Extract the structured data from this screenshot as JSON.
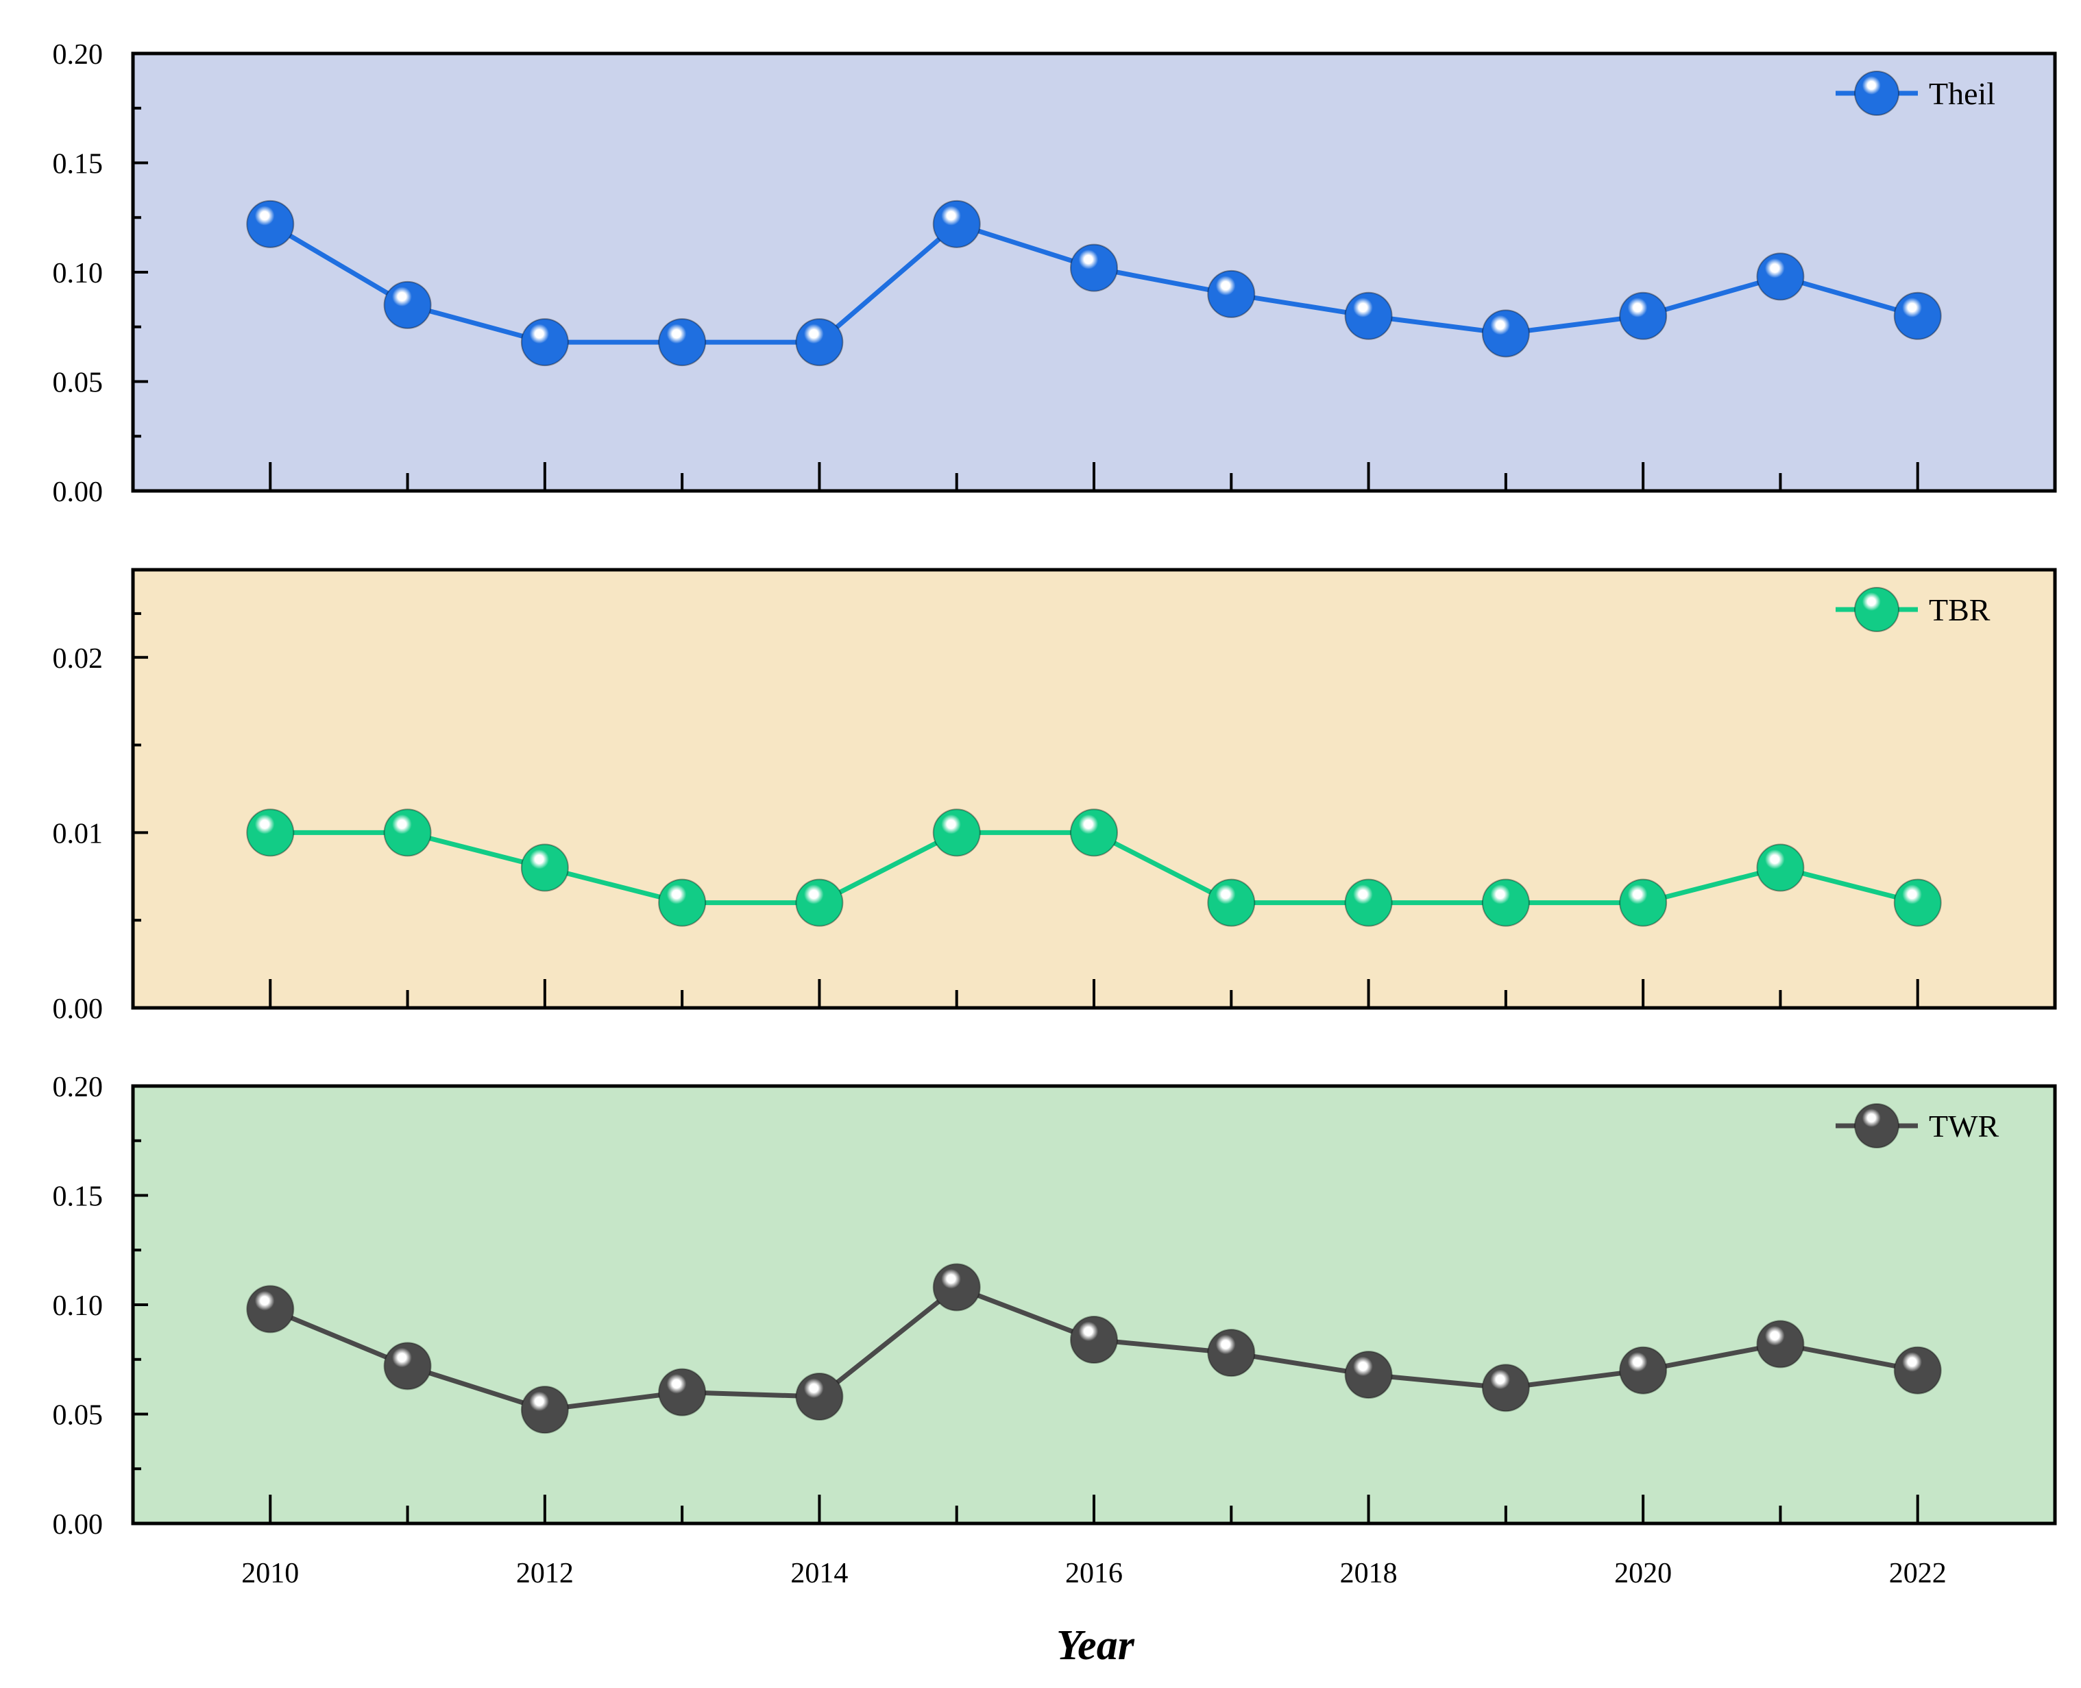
{
  "chart_data": {
    "type": "line",
    "xlabel": "Year",
    "x": [
      2010,
      2011,
      2012,
      2013,
      2014,
      2015,
      2016,
      2017,
      2018,
      2019,
      2020,
      2021,
      2022
    ],
    "x_tick_labels": [
      "2010",
      "2012",
      "2014",
      "2016",
      "2018",
      "2020",
      "2022"
    ],
    "xlim": [
      2009,
      2023
    ],
    "legend_position": "top-right",
    "grid": false,
    "panels": [
      {
        "series": [
          {
            "name": "Theil",
            "color": "#1f6fe0",
            "values": [
              0.122,
              0.085,
              0.068,
              0.068,
              0.068,
              0.122,
              0.102,
              0.09,
              0.08,
              0.072,
              0.08,
              0.098,
              0.08
            ]
          }
        ],
        "background": "#cbd3ec",
        "ylim": [
          0,
          0.2
        ],
        "y_tick_values": [
          0,
          0.05,
          0.1,
          0.15,
          0.2
        ],
        "y_tick_labels": [
          "0.00",
          "0.05",
          "0.10",
          "0.15",
          "0.20"
        ]
      },
      {
        "series": [
          {
            "name": "TBR",
            "color": "#12cc86",
            "values": [
              0.01,
              0.01,
              0.008,
              0.006,
              0.006,
              0.01,
              0.01,
              0.006,
              0.006,
              0.006,
              0.006,
              0.008,
              0.006
            ]
          }
        ],
        "background": "#f7e6c4",
        "ylim": [
          0,
          0.025
        ],
        "y_tick_values": [
          0,
          0.01,
          0.02
        ],
        "y_tick_labels": [
          "0.00",
          "0.01",
          "0.02"
        ]
      },
      {
        "series": [
          {
            "name": "TWR",
            "color": "#4a4a4a",
            "values": [
              0.098,
              0.072,
              0.052,
              0.06,
              0.058,
              0.108,
              0.084,
              0.078,
              0.068,
              0.062,
              0.07,
              0.082,
              0.07
            ]
          }
        ],
        "background": "#c6e6c8",
        "ylim": [
          0,
          0.2
        ],
        "y_tick_values": [
          0,
          0.05,
          0.1,
          0.15,
          0.2
        ],
        "y_tick_labels": [
          "0.00",
          "0.05",
          "0.10",
          "0.15",
          "0.20"
        ]
      }
    ]
  }
}
